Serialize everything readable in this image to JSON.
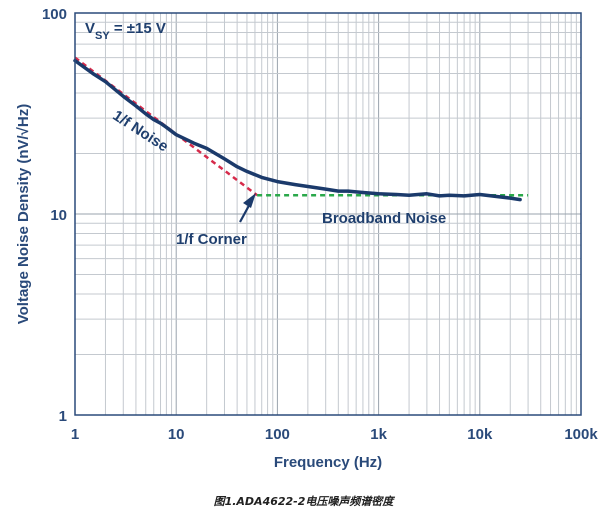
{
  "chart_data": {
    "type": "line",
    "xlabel": "Frequency (Hz)",
    "ylabel": "Voltage Noise Density (nV/√Hz)",
    "x_scale": "log",
    "y_scale": "log",
    "xlim": [
      1,
      100000
    ],
    "ylim": [
      1,
      100
    ],
    "x_ticks": [
      {
        "value": 1,
        "label": "1"
      },
      {
        "value": 10,
        "label": "10"
      },
      {
        "value": 100,
        "label": "100"
      },
      {
        "value": 1000,
        "label": "1k"
      },
      {
        "value": 10000,
        "label": "10k"
      },
      {
        "value": 100000,
        "label": "100k"
      }
    ],
    "y_ticks": [
      {
        "value": 1,
        "label": "1"
      },
      {
        "value": 10,
        "label": "10"
      },
      {
        "value": 100,
        "label": "100"
      }
    ],
    "grid": true,
    "series": [
      {
        "color": "#1b3a6b",
        "style": "solid",
        "x": [
          1,
          1.5,
          2,
          3,
          4,
          5,
          6,
          7,
          8,
          10,
          15,
          20,
          30,
          40,
          50,
          70,
          100,
          150,
          200,
          300,
          400,
          500,
          700,
          1000,
          1500,
          2000,
          3000,
          4000,
          5000,
          7000,
          10000,
          15000,
          20000,
          25000
        ],
        "y": [
          58,
          50,
          45.5,
          38.5,
          34.5,
          31.5,
          29.5,
          28.3,
          27,
          24.8,
          22.5,
          21.2,
          18.8,
          17.2,
          16.3,
          15.2,
          14.5,
          14.0,
          13.7,
          13.3,
          13.0,
          13.0,
          12.8,
          12.6,
          12.5,
          12.4,
          12.6,
          12.3,
          12.4,
          12.3,
          12.5,
          12.2,
          12.0,
          11.8
        ]
      },
      {
        "color": "#d62a4a",
        "style": "dashed",
        "x": [
          1,
          63
        ],
        "y": [
          60,
          12.4
        ]
      },
      {
        "color": "#2aa84a",
        "style": "dashed",
        "x": [
          63,
          30000
        ],
        "y": [
          12.4,
          12.4
        ]
      }
    ],
    "annotations": [
      {
        "text": "1/f Noise"
      },
      {
        "text": "1/f Corner"
      },
      {
        "text": "Broadband Noise"
      }
    ],
    "condition": {
      "prefix": "V",
      "subscript": "SY",
      "suffix": " = ±15 V"
    }
  },
  "caption": "图1.ADA4622-2电压噪声频谱密度"
}
